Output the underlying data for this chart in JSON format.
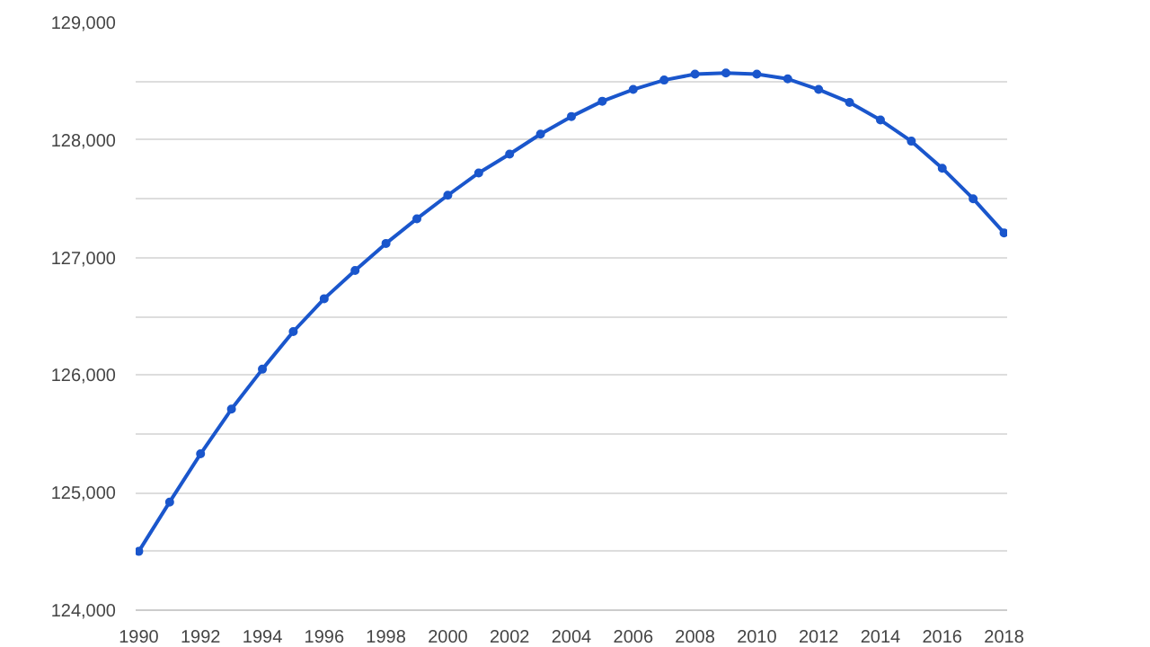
{
  "chart_data": {
    "type": "line",
    "x": [
      1990,
      1991,
      1992,
      1993,
      1994,
      1995,
      1996,
      1997,
      1998,
      1999,
      2000,
      2001,
      2002,
      2003,
      2004,
      2005,
      2006,
      2007,
      2008,
      2009,
      2010,
      2011,
      2012,
      2013,
      2014,
      2015,
      2016,
      2017,
      2018
    ],
    "series": [
      {
        "color": "#1a56cc",
        "values": [
          124500,
          124920,
          125330,
          125710,
          126050,
          126370,
          126650,
          126890,
          127120,
          127330,
          127530,
          127720,
          127880,
          128050,
          128200,
          128330,
          128430,
          128510,
          128560,
          128570,
          128560,
          128520,
          128430,
          128320,
          128170,
          127990,
          127760,
          127500,
          127210
        ]
      }
    ],
    "xlim": [
      1989.9,
      2018.1
    ],
    "xticks": [
      1990,
      1992,
      1994,
      1996,
      1998,
      2000,
      2002,
      2004,
      2006,
      2008,
      2010,
      2012,
      2014,
      2016,
      2018
    ],
    "ylim": [
      124000,
      129000
    ],
    "yticks": [
      {
        "value": 124000,
        "label": "124,000"
      },
      {
        "value": 124500,
        "label": null
      },
      {
        "value": 125000,
        "label": "125,000"
      },
      {
        "value": 125500,
        "label": null
      },
      {
        "value": 126000,
        "label": "126,000"
      },
      {
        "value": 126500,
        "label": null
      },
      {
        "value": 127000,
        "label": "127,000"
      },
      {
        "value": 127500,
        "label": null
      },
      {
        "value": 128000,
        "label": "128,000"
      },
      {
        "value": 128500,
        "label": null
      },
      {
        "value": 129000,
        "label": "129,000"
      }
    ],
    "grid": "y",
    "marker": "circle",
    "line_style": "solid"
  }
}
